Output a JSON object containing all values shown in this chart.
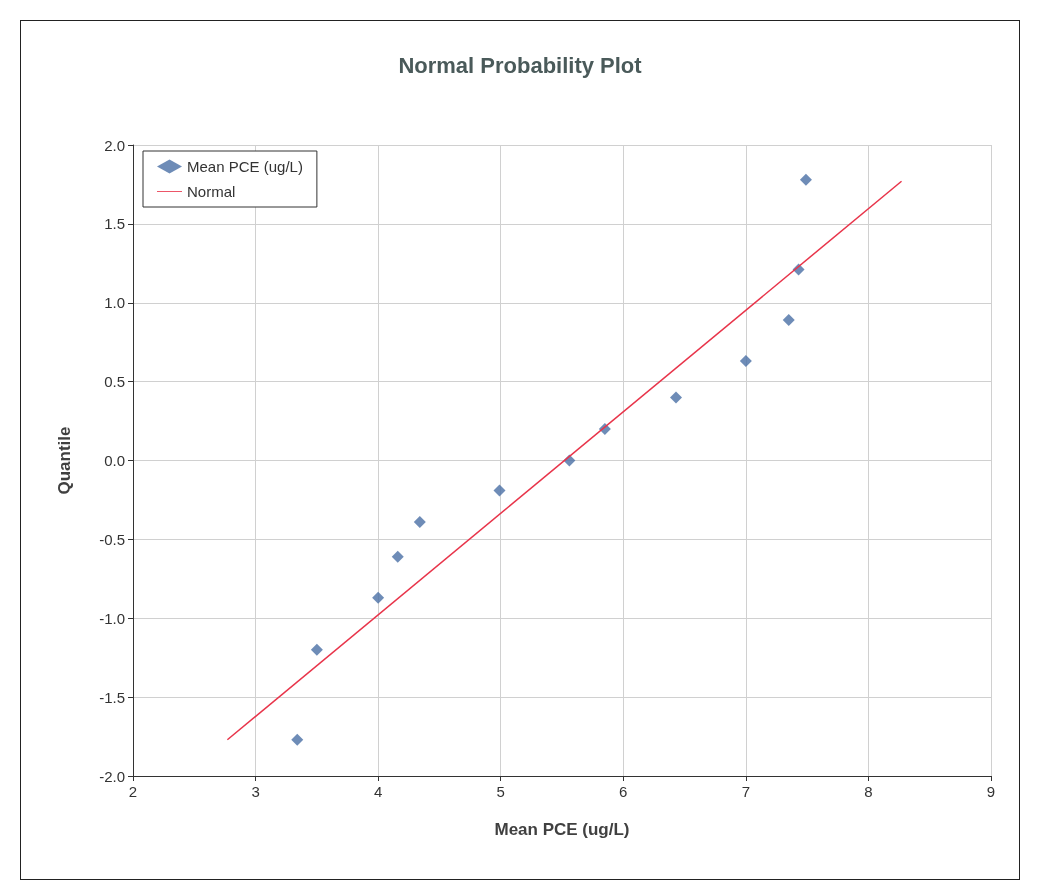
{
  "chart_data": {
    "type": "scatter",
    "title": "Normal Probability Plot",
    "xlabel": "Mean PCE (ug/L)",
    "ylabel": "Quantile",
    "xlim": [
      2,
      9
    ],
    "xticks": [
      2,
      3,
      4,
      5,
      6,
      7,
      8,
      9
    ],
    "ylim": [
      -2,
      2
    ],
    "yticks": [
      {
        "value": -2,
        "label": "-2.0"
      },
      {
        "value": -1.5,
        "label": "-1.5"
      },
      {
        "value": -1,
        "label": "-1.0"
      },
      {
        "value": -0.5,
        "label": "-0.5"
      },
      {
        "value": 0,
        "label": "0.0"
      },
      {
        "value": 0.5,
        "label": "0.5"
      },
      {
        "value": 1,
        "label": "1.0"
      },
      {
        "value": 1.5,
        "label": "1.5"
      },
      {
        "value": 2,
        "label": "2.0"
      }
    ],
    "grid": true,
    "legend": "top left",
    "marker": "diamond",
    "series": [
      {
        "name": "Mean PCE (ug/L)",
        "color": "#4a6fa5",
        "x": [
          3.34,
          3.5,
          4.0,
          4.16,
          4.34,
          4.99,
          5.56,
          5.85,
          6.43,
          7.0,
          7.35,
          7.43,
          7.49
        ],
        "values": [
          -1.77,
          -1.2,
          -0.87,
          -0.61,
          -0.39,
          -0.19,
          0.0,
          0.2,
          0.4,
          0.63,
          0.89,
          1.21,
          1.78
        ]
      },
      {
        "name": "Normal",
        "type": "line",
        "color": "#e8344a",
        "x": [
          2.77,
          8.27
        ],
        "values": [
          -1.77,
          1.77
        ],
        "marker": "none",
        "line_style": "solid"
      }
    ]
  }
}
